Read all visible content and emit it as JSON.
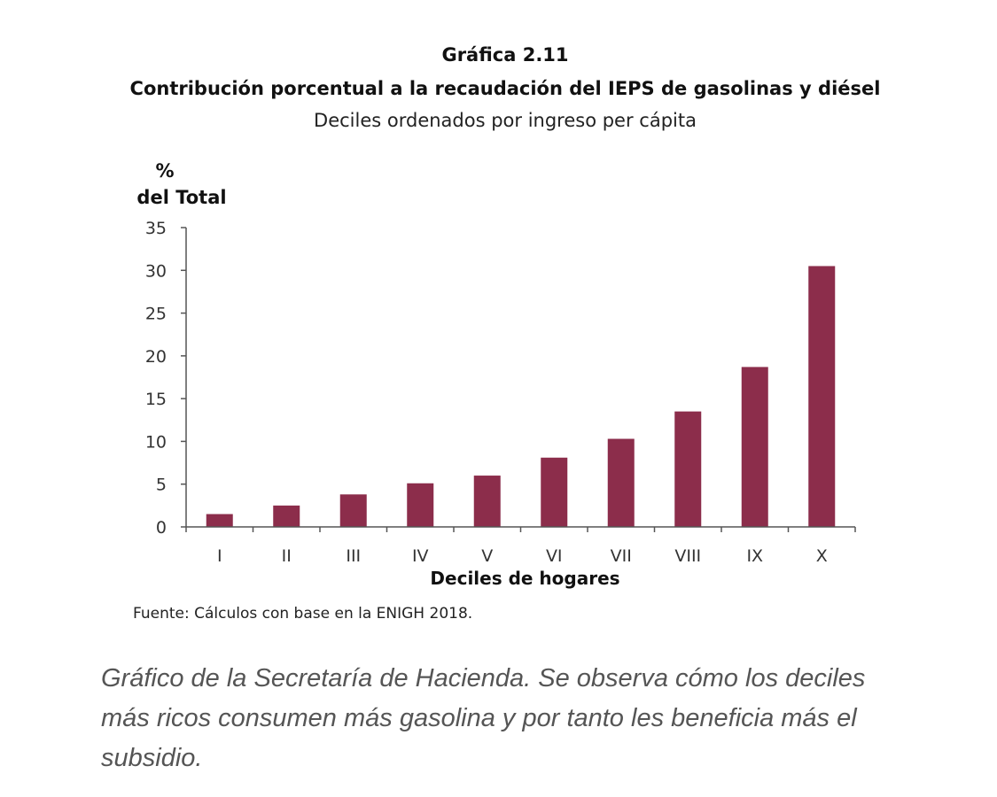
{
  "header": {
    "title": "Gráfica 2.11",
    "subtitle": "Contribución porcentual a la recaudación del IEPS de gasolinas y diésel",
    "subsubtitle": "Deciles ordenados por ingreso per cápita"
  },
  "chart_data": {
    "type": "bar",
    "ylabel_lines": [
      "%",
      "del Total"
    ],
    "xlabel": "Deciles de hogares",
    "categories": [
      "I",
      "II",
      "III",
      "IV",
      "V",
      "VI",
      "VII",
      "VIII",
      "IX",
      "X"
    ],
    "values": [
      1.5,
      2.5,
      3.8,
      5.1,
      6.0,
      8.1,
      10.3,
      13.5,
      18.7,
      30.5
    ],
    "ylim": [
      0,
      35
    ],
    "yticks": [
      0,
      5,
      10,
      15,
      20,
      25,
      30,
      35
    ],
    "grid": false,
    "bar_color": "#8c2d4b"
  },
  "footer": {
    "source": "Fuente: Cálculos con base en la ENIGH 2018.",
    "caption": "Gráfico de la Secretaría de Hacienda. Se observa cómo los deciles más ricos consumen más gasolina y por tanto les beneficia más el subsidio."
  }
}
